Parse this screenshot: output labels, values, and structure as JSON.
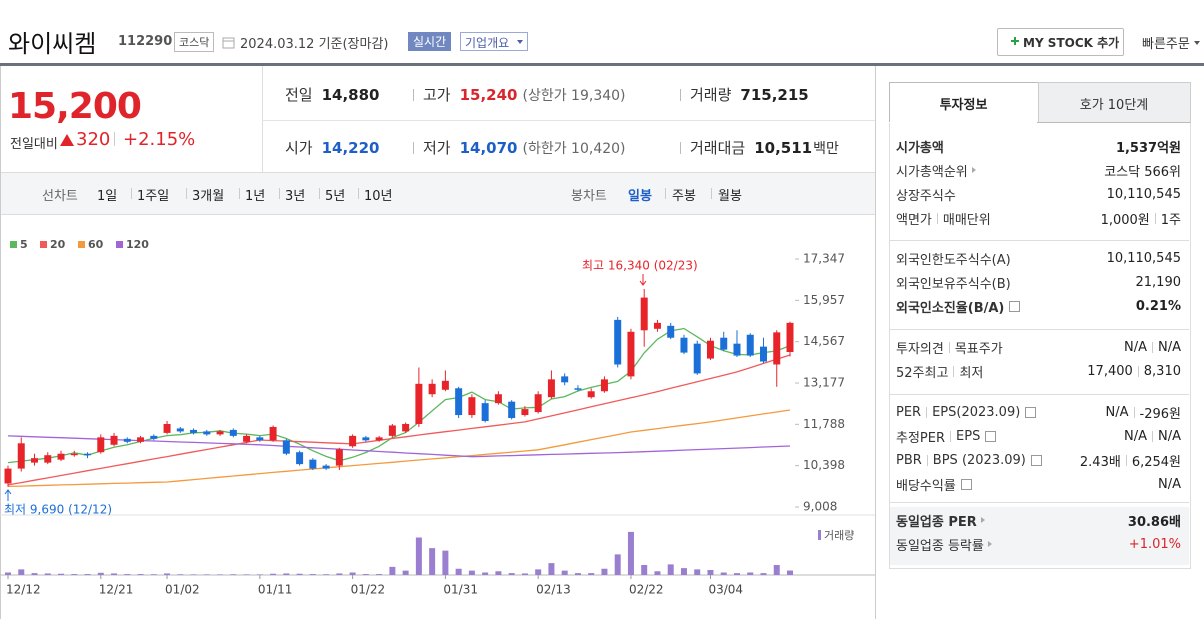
{
  "header": {
    "name": "와이씨켐",
    "code": "112290",
    "market": "코스닥",
    "date": "2024.03.12 기준(장마감)",
    "realtime": "실시간",
    "company": "기업개요",
    "my_stock": "MY STOCK 추가",
    "quick_order": "빠른주문"
  },
  "price": {
    "current": "15,200",
    "change_label": "전일대비",
    "change": "320",
    "change_pct": "+2.15%"
  },
  "stats": [
    [
      {
        "label": "전일",
        "value": "14,880"
      },
      {
        "label": "고가",
        "value": "15,240",
        "color": "#d9262c",
        "note": "(상한가 19,340)"
      },
      {
        "label": "거래량",
        "value": "715,215"
      }
    ],
    [
      {
        "label": "시가",
        "value": "14,220",
        "color": "#1d5fc7"
      },
      {
        "label": "저가",
        "value": "14,070",
        "color": "#1d5fc7",
        "note": "(하한가 10,420)"
      },
      {
        "label": "거래대금",
        "value": "10,511",
        "unit": "백만"
      }
    ]
  ],
  "chart_tabs": {
    "line_label": "선차트",
    "line_periods": [
      "1일",
      "1주일",
      "3개월",
      "1년",
      "3년",
      "5년",
      "10년"
    ],
    "candle_label": "봉차트",
    "candle_periods": [
      "일봉",
      "주봉",
      "월봉"
    ],
    "candle_active": 0
  },
  "chart_data": {
    "type": "candlestick",
    "categories": [
      "12/12",
      null,
      null,
      null,
      null,
      null,
      null,
      "12/21",
      null,
      null,
      null,
      null,
      "01/02",
      null,
      null,
      null,
      null,
      null,
      null,
      "01/11",
      null,
      null,
      null,
      null,
      null,
      null,
      "01/22",
      null,
      null,
      null,
      null,
      null,
      null,
      "01/31",
      null,
      null,
      null,
      null,
      null,
      null,
      "02/13",
      null,
      null,
      null,
      null,
      null,
      null,
      "02/22",
      null,
      null,
      null,
      null,
      null,
      "03/04",
      null,
      null,
      null,
      null,
      null,
      null
    ],
    "open": [
      9800,
      10300,
      10500,
      10500,
      10600,
      10750,
      10800,
      10850,
      11100,
      11300,
      11200,
      11400,
      11500,
      11650,
      11600,
      11550,
      11450,
      11600,
      11200,
      11350,
      11250,
      11250,
      10850,
      10600,
      10400,
      10400,
      11050,
      11350,
      11250,
      11400,
      11550,
      11800,
      12800,
      12950,
      13000,
      12100,
      12500,
      12500,
      12550,
      12100,
      12200,
      12700,
      13400,
      13000,
      12700,
      12900,
      15300,
      13400,
      14950,
      15000,
      15100,
      14700,
      14500,
      14000,
      14700,
      14500,
      14800,
      14400,
      13800,
      14220
    ],
    "high": [
      10400,
      11350,
      10800,
      10850,
      10900,
      10900,
      10850,
      11450,
      11500,
      11350,
      11400,
      11450,
      11900,
      11700,
      11650,
      11600,
      11600,
      11650,
      11450,
      11400,
      11750,
      11300,
      10900,
      10650,
      10450,
      11000,
      11450,
      11400,
      11400,
      11800,
      11850,
      13700,
      13300,
      13600,
      13050,
      12800,
      12600,
      12900,
      12600,
      12400,
      12900,
      13600,
      13500,
      13100,
      13000,
      13400,
      15400,
      15000,
      16340,
      15300,
      15200,
      14800,
      14600,
      14700,
      14900,
      14950,
      14850,
      14700,
      14950,
      15240
    ],
    "low": [
      9690,
      10200,
      10400,
      10450,
      10550,
      10700,
      10650,
      10800,
      11050,
      11150,
      11150,
      11250,
      11450,
      11500,
      11450,
      11400,
      11400,
      11350,
      11150,
      11200,
      11200,
      10750,
      10400,
      10250,
      10250,
      10250,
      11000,
      11200,
      11200,
      11350,
      11500,
      11700,
      12700,
      12900,
      12000,
      12000,
      11850,
      12450,
      11950,
      12050,
      12150,
      12650,
      13100,
      12900,
      12650,
      12850,
      13700,
      13300,
      14400,
      14900,
      14650,
      14150,
      13450,
      13950,
      14250,
      14050,
      14050,
      13850,
      13050,
      14070
    ],
    "close": [
      10300,
      11150,
      10650,
      10750,
      10800,
      10800,
      10750,
      11350,
      11400,
      11200,
      11350,
      11300,
      11800,
      11550,
      11500,
      11450,
      11550,
      11400,
      11400,
      11250,
      11700,
      10800,
      10450,
      10300,
      10300,
      10950,
      11400,
      11250,
      11350,
      11750,
      11800,
      13150,
      13150,
      13250,
      12100,
      12700,
      11900,
      12800,
      12000,
      12300,
      12800,
      13300,
      13200,
      12950,
      12900,
      13300,
      13800,
      14900,
      16050,
      15200,
      14700,
      14200,
      13500,
      14600,
      14300,
      14100,
      14100,
      13900,
      14880,
      15200
    ],
    "up_color": "#e8242b",
    "down_color": "#1a6fd8",
    "series": [
      {
        "name": "5",
        "color": "#5cb85c",
        "values": [
          10500,
          10550,
          10600,
          10650,
          10730,
          10830,
          10750,
          10890,
          11020,
          11100,
          11210,
          11320,
          11410,
          11440,
          11500,
          11520,
          11570,
          11490,
          11460,
          11410,
          11460,
          11310,
          11120,
          10900,
          10710,
          10560,
          10680,
          10840,
          11050,
          11340,
          11510,
          11860,
          12240,
          12620,
          12690,
          12870,
          12620,
          12550,
          12300,
          12340,
          12360,
          12640,
          12720,
          12910,
          13030,
          13130,
          13230,
          13570,
          14190,
          14650,
          14930,
          15010,
          14730,
          14440,
          14260,
          14140,
          14120,
          14200,
          14256,
          14436
        ]
      },
      {
        "name": "20",
        "color": "#f05a5a",
        "values": [
          9750,
          9829,
          9909,
          9988,
          10068,
          10147,
          10227,
          10306,
          10386,
          10465,
          10545,
          10624,
          10704,
          10783,
          10863,
          10942,
          11022,
          11101,
          11181,
          11260,
          11241,
          11223,
          11204,
          11186,
          11167,
          11149,
          11130,
          11190,
          11250,
          11310,
          11370,
          11430,
          11485,
          11540,
          11595,
          11650,
          11705,
          11760,
          11815,
          11870,
          11971,
          12072,
          12173,
          12274,
          12376,
          12477,
          12578,
          12679,
          12780,
          12890,
          13000,
          13110,
          13220,
          13330,
          13440,
          13550,
          13692,
          13835,
          13977,
          14120
        ]
      },
      {
        "name": "60",
        "color": "#f39a3c",
        "values": [
          9700,
          9712,
          9725,
          9737,
          9750,
          9762,
          9775,
          9787,
          9800,
          9812,
          9825,
          9837,
          9850,
          9890,
          9930,
          9970,
          10010,
          10050,
          10090,
          10130,
          10170,
          10210,
          10250,
          10287,
          10325,
          10362,
          10400,
          10437,
          10475,
          10512,
          10550,
          10587,
          10625,
          10660,
          10699,
          10737,
          10776,
          10815,
          10853,
          10892,
          10930,
          11016,
          11101,
          11187,
          11273,
          11359,
          11444,
          11530,
          11587,
          11643,
          11700,
          11757,
          11813,
          11870,
          11937,
          12003,
          12070,
          12137,
          12203,
          12270
        ]
      },
      {
        "name": "120",
        "color": "#a265d8",
        "values": [
          11400,
          11384,
          11368,
          11353,
          11337,
          11321,
          11305,
          11289,
          11274,
          11258,
          11242,
          11226,
          11211,
          11195,
          11179,
          11163,
          11147,
          11132,
          11116,
          11100,
          11075,
          11050,
          11025,
          11000,
          10975,
          10950,
          10925,
          10900,
          10875,
          10850,
          10825,
          10800,
          10775,
          10750,
          10725,
          10700,
          10712,
          10725,
          10737,
          10750,
          10762,
          10775,
          10787,
          10800,
          10812,
          10825,
          10837,
          10850,
          10867,
          10885,
          10902,
          10920,
          10937,
          10955,
          10972,
          10990,
          11007,
          11025,
          11042,
          11060
        ]
      }
    ],
    "ylim": [
      9008,
      17347
    ],
    "yticks": [
      {
        "value": 17347,
        "label": "17,347"
      },
      {
        "value": 15957,
        "label": "15,957"
      },
      {
        "value": 14567,
        "label": "14,567"
      },
      {
        "value": 13177,
        "label": "13,177"
      },
      {
        "value": 11788,
        "label": "11,788"
      },
      {
        "value": 10398,
        "label": "10,398"
      },
      {
        "value": 9008,
        "label": "9,008"
      }
    ],
    "grid": false,
    "high_label": "최고 16,340 (02/23)",
    "low_label": "최저 9,690 (12/12)",
    "volume": {
      "name": "거래량",
      "color": "#9a7fd1",
      "ylim": [
        0,
        8000000
      ],
      "values": [
        400000,
        900000,
        300000,
        250000,
        200000,
        150000,
        150000,
        350000,
        250000,
        150000,
        150000,
        120000,
        250000,
        120000,
        100000,
        100000,
        100000,
        120000,
        100000,
        100000,
        200000,
        250000,
        200000,
        150000,
        120000,
        250000,
        400000,
        150000,
        150000,
        1300000,
        700000,
        6000000,
        4300000,
        3900000,
        1000000,
        700000,
        400000,
        600000,
        300000,
        250000,
        900000,
        1900000,
        700000,
        300000,
        300000,
        1000000,
        3300000,
        6900000,
        1600000,
        600000,
        1700000,
        1100000,
        900000,
        800000,
        400000,
        300000,
        400000,
        300000,
        1600000,
        715215
      ]
    }
  },
  "side_panel": {
    "tabs": [
      "투자정보",
      "호가 10단계"
    ],
    "groups": [
      {
        "rows": [
          {
            "label": [
              "시가총액"
            ],
            "value": [
              "1,537억원"
            ],
            "bold": true
          },
          {
            "label": [
              "시가총액순위"
            ],
            "arrow": true,
            "value": [
              "코스닥 566위"
            ]
          },
          {
            "label": [
              "상장주식수"
            ],
            "value": [
              "10,110,545"
            ]
          },
          {
            "label": [
              "액면가",
              "매매단위"
            ],
            "value": [
              "1,000원",
              "1주"
            ]
          }
        ]
      },
      {
        "rows": [
          {
            "label": [
              "외국인한도주식수(A)"
            ],
            "value": [
              "10,110,545"
            ]
          },
          {
            "label": [
              "외국인보유주식수(B)"
            ],
            "value": [
              "21,190"
            ]
          },
          {
            "label": [
              "외국인소진율(B/A)"
            ],
            "value": [
              "0.21%"
            ],
            "bold": true,
            "help": true
          }
        ]
      },
      {
        "rows": [
          {
            "label": [
              "투자의견",
              "목표주가"
            ],
            "value": [
              "N/A",
              "N/A"
            ]
          },
          {
            "label": [
              "52주최고",
              "최저"
            ],
            "value": [
              "17,400",
              "8,310"
            ]
          }
        ]
      },
      {
        "rows": [
          {
            "label": [
              "PER",
              "EPS(2023.09)"
            ],
            "value": [
              "N/A",
              "-296원"
            ],
            "help": true
          },
          {
            "label": [
              "추정PER",
              "EPS"
            ],
            "value": [
              "N/A",
              "N/A"
            ],
            "help": true
          },
          {
            "label": [
              "PBR",
              "BPS (2023.09)"
            ],
            "value": [
              "2.43배",
              "6,254원"
            ],
            "help": true
          },
          {
            "label": [
              "배당수익률"
            ],
            "value": [
              "N/A"
            ],
            "help": true
          }
        ]
      },
      {
        "shaded": true,
        "rows": [
          {
            "label": [
              "동일업종 PER"
            ],
            "arrow": true,
            "value": [
              "30.86배"
            ],
            "bold": true
          },
          {
            "label": [
              "동일업종 등락률"
            ],
            "arrow": true,
            "value": [
              "+1.01%"
            ],
            "color": "#d9262c"
          }
        ]
      }
    ]
  }
}
